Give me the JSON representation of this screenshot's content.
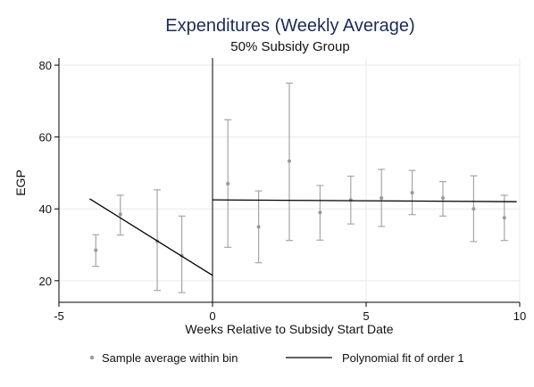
{
  "chart_data": {
    "type": "scatter",
    "title": "Expenditures (Weekly Average)",
    "subtitle": "50% Subsidy Group",
    "xlabel": "Weeks Relative to Subsidy Start Date",
    "ylabel": "EGP",
    "xlim": [
      -5,
      10
    ],
    "ylim": [
      14,
      82
    ],
    "x_ticks": [
      "-5",
      "0",
      "5",
      "10"
    ],
    "x_tick_values": [
      -5,
      0,
      5,
      10
    ],
    "y_ticks": [
      "20",
      "40",
      "60",
      "80"
    ],
    "y_tick_values": [
      20,
      40,
      60,
      80
    ],
    "grid": true,
    "vertical_line_x": 0,
    "series": [
      {
        "name": "Sample average within bin",
        "type": "scatter",
        "points": [
          {
            "x": -3.8,
            "y": 28.5,
            "lo": 24.0,
            "hi": 32.8
          },
          {
            "x": -3.0,
            "y": 38.5,
            "lo": 32.7,
            "hi": 43.8
          },
          {
            "x": -1.8,
            "y": 31.0,
            "lo": 17.3,
            "hi": 45.3
          },
          {
            "x": -1.0,
            "y": 27.0,
            "lo": 16.7,
            "hi": 38.0
          },
          {
            "x": 0.5,
            "y": 47.0,
            "lo": 29.3,
            "hi": 64.8
          },
          {
            "x": 1.5,
            "y": 35.0,
            "lo": 25.0,
            "hi": 45.0
          },
          {
            "x": 2.5,
            "y": 53.3,
            "lo": 31.2,
            "hi": 75.0
          },
          {
            "x": 3.5,
            "y": 39.0,
            "lo": 31.3,
            "hi": 46.5
          },
          {
            "x": 4.5,
            "y": 42.5,
            "lo": 35.8,
            "hi": 49.1
          },
          {
            "x": 5.5,
            "y": 43.0,
            "lo": 35.1,
            "hi": 51.0
          },
          {
            "x": 6.5,
            "y": 44.5,
            "lo": 38.4,
            "hi": 50.7
          },
          {
            "x": 7.5,
            "y": 43.0,
            "lo": 38.0,
            "hi": 47.6
          },
          {
            "x": 8.5,
            "y": 40.0,
            "lo": 30.9,
            "hi": 49.2
          },
          {
            "x": 9.5,
            "y": 37.5,
            "lo": 31.2,
            "hi": 43.8
          }
        ]
      },
      {
        "name": "Polynomial fit of order 1",
        "type": "line",
        "segments": [
          [
            {
              "x": -4.0,
              "y": 42.8
            },
            {
              "x": 0.0,
              "y": 21.5
            }
          ],
          [
            {
              "x": 0.0,
              "y": 42.5
            },
            {
              "x": 9.9,
              "y": 42.0
            }
          ]
        ]
      }
    ]
  }
}
